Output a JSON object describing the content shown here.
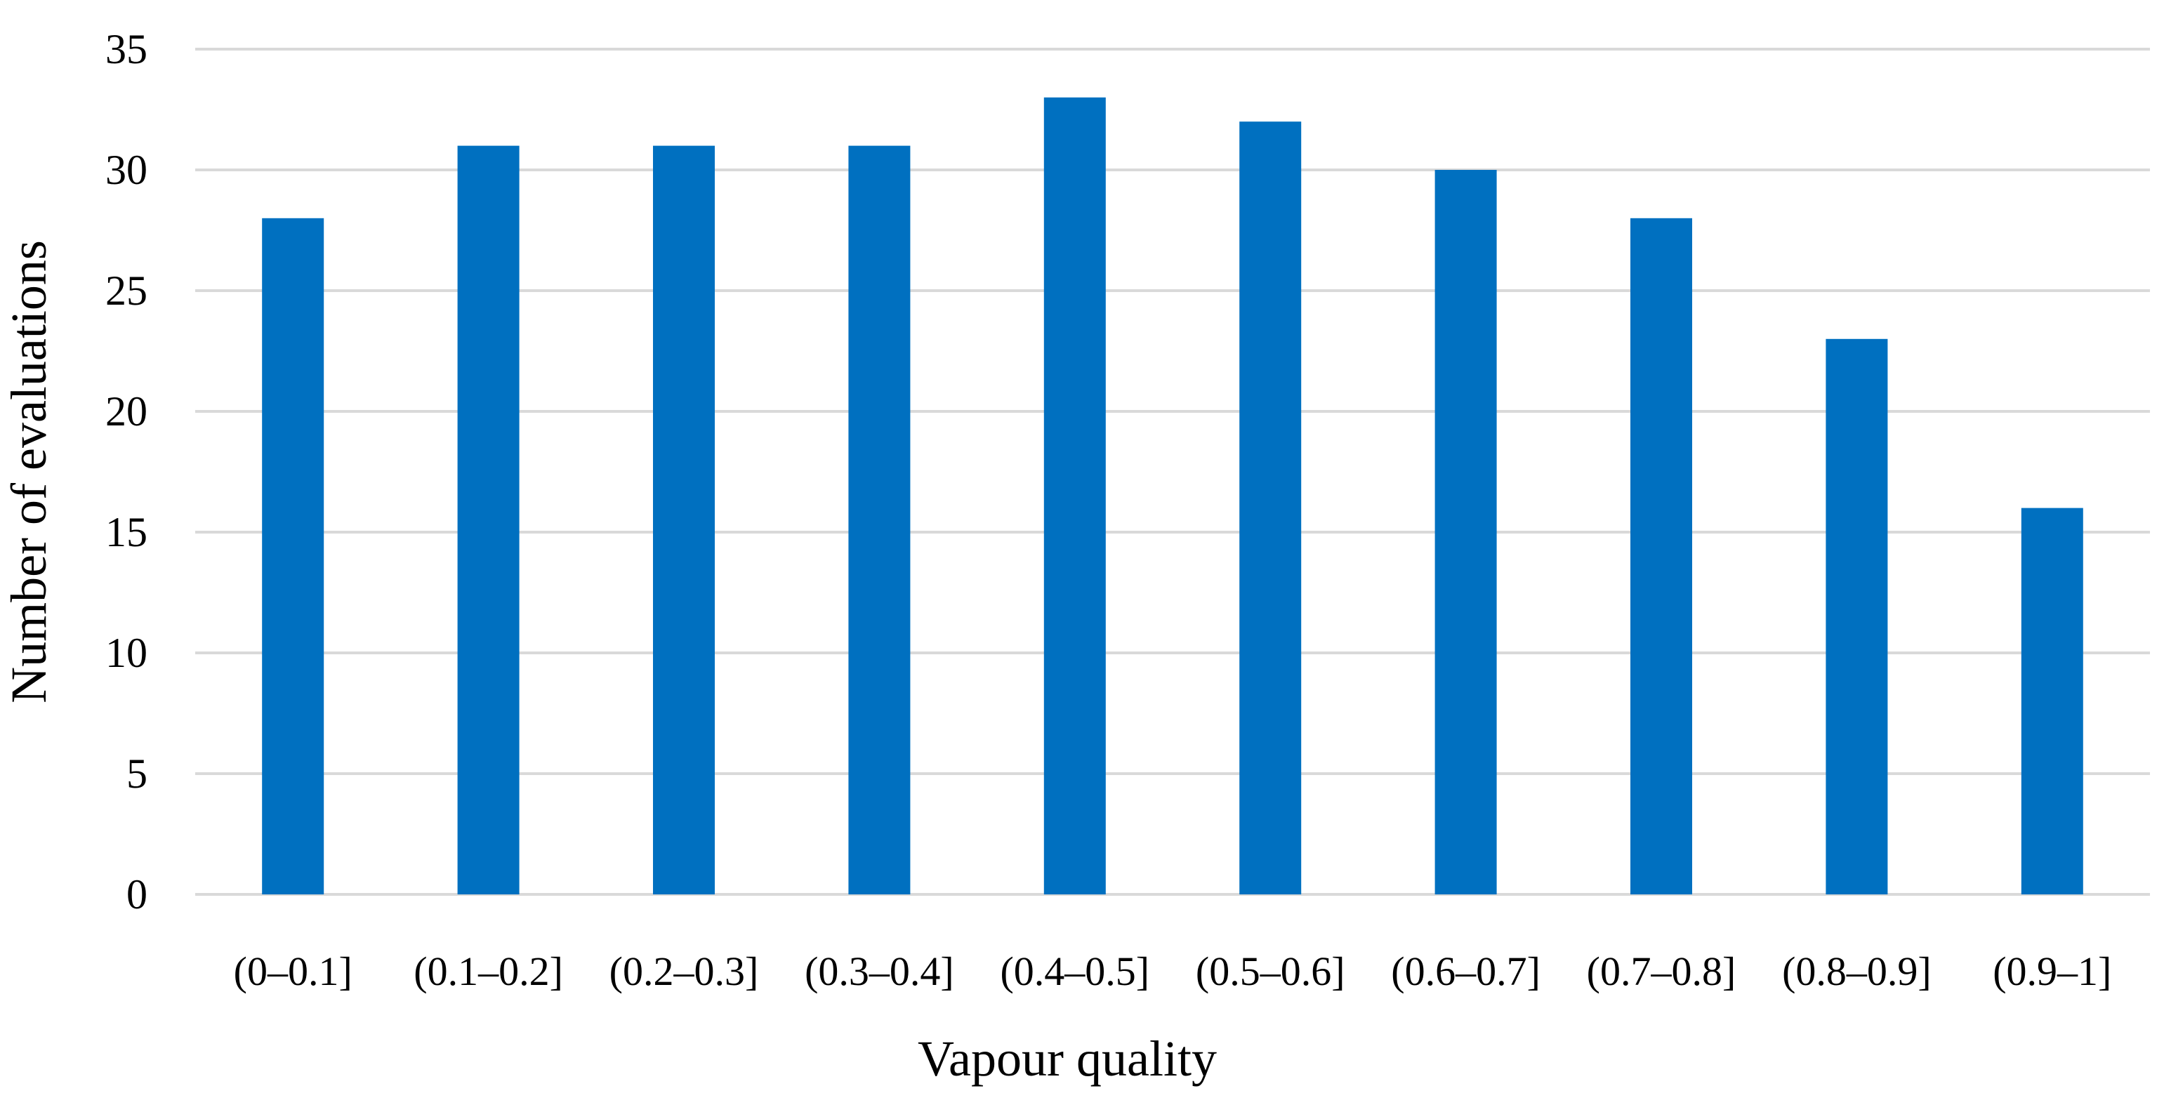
{
  "chart_data": {
    "type": "bar",
    "title": "",
    "xlabel": "Vapour quality",
    "ylabel": "Number of evaluations",
    "categories": [
      "(0–0.1]",
      "(0.1–0.2]",
      "(0.2–0.3]",
      "(0.3–0.4]",
      "(0.4–0.5]",
      "(0.5–0.6]",
      "(0.6–0.7]",
      "(0.7–0.8]",
      "(0.8–0.9]",
      "(0.9–1]"
    ],
    "values": [
      28,
      31,
      31,
      31,
      33,
      32,
      30,
      28,
      23,
      16
    ],
    "ylim": [
      0,
      35
    ],
    "yticks": [
      0,
      5,
      10,
      15,
      20,
      25,
      30,
      35
    ],
    "grid": true,
    "legend": "none",
    "bar_color": "#0070C0",
    "grid_color": "#d9d9d9"
  }
}
